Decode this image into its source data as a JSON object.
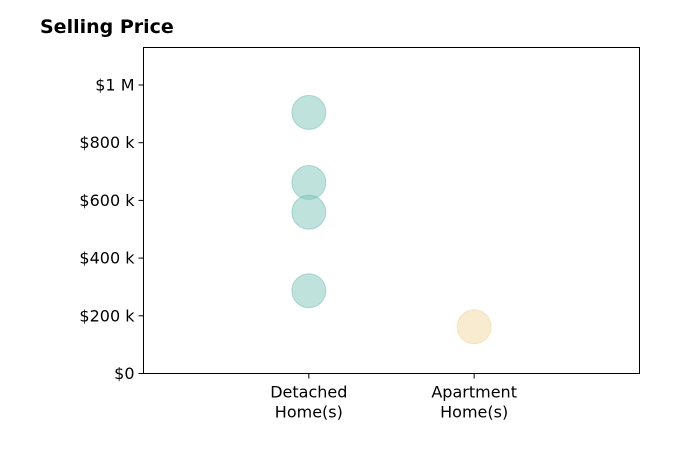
{
  "chart_data": {
    "type": "scatter",
    "title": "Selling Price",
    "xlabel": "",
    "ylabel": "",
    "categories": [
      [
        "Detached",
        "Home(s)"
      ],
      [
        "Apartment",
        "Home(s)"
      ]
    ],
    "xlim": [
      -1,
      2
    ],
    "ylim": [
      0,
      1130000
    ],
    "yticks": [
      0,
      200000,
      400000,
      600000,
      800000,
      1000000
    ],
    "ytick_labels": [
      "$0",
      "$200 k",
      "$400 k",
      "$600 k",
      "$800 k",
      "$1 M"
    ],
    "grid": false,
    "series": [
      {
        "category_index": 0,
        "color": "#7fc6bc",
        "edge_color": "#3fa596",
        "alpha": 0.5,
        "values": [
          905000,
          662000,
          559000,
          287000
        ]
      },
      {
        "category_index": 1,
        "color": "#f5deb0",
        "edge_color": "#e6c27a",
        "alpha": 0.6,
        "values": [
          162000
        ]
      }
    ]
  }
}
